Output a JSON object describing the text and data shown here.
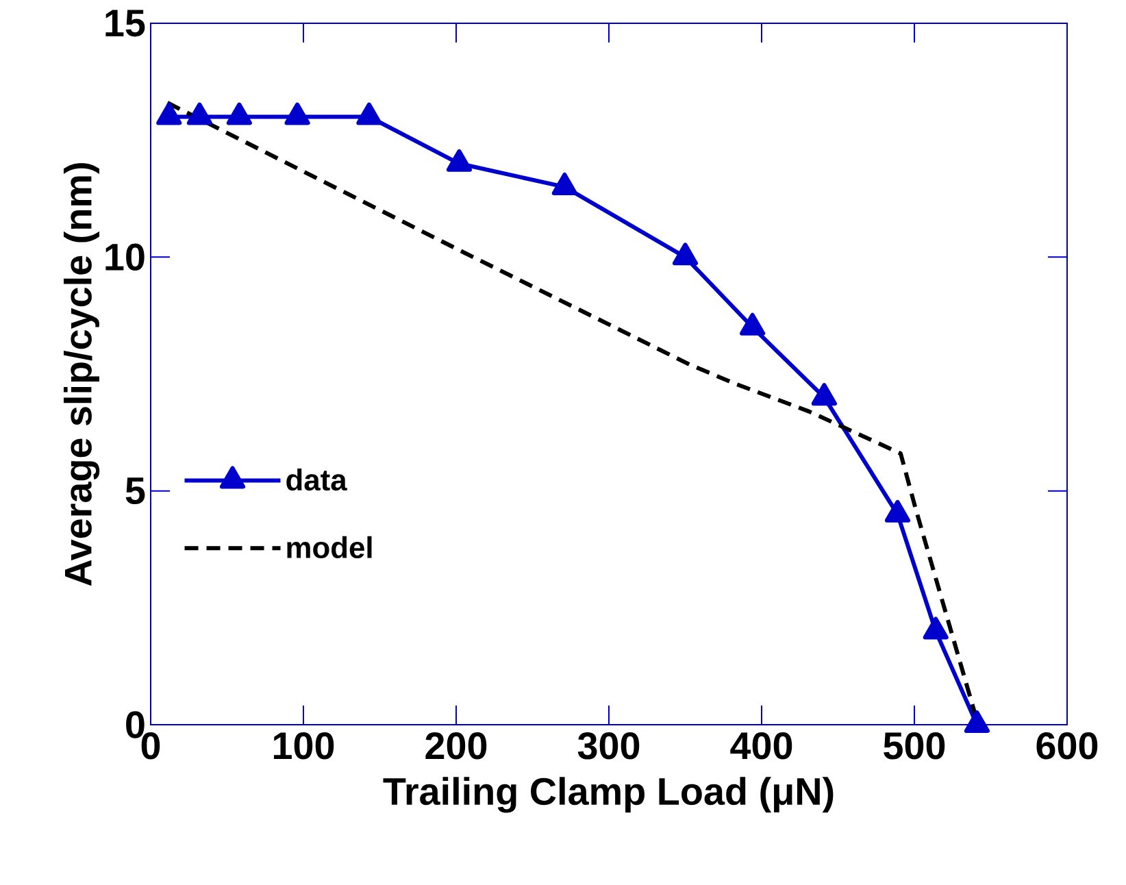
{
  "chart_data": {
    "type": "line",
    "xlabel": "Trailing Clamp Load  (μN)",
    "ylabel": "Average slip/cycle (nm)",
    "xlim": [
      0,
      600
    ],
    "ylim": [
      0,
      15
    ],
    "xticks": [
      0,
      100,
      200,
      300,
      400,
      500,
      600
    ],
    "yticks": [
      0,
      5,
      10,
      15
    ],
    "legend": "left",
    "grid": false,
    "series": [
      {
        "name": "data",
        "color": "#0000cc",
        "marker": "triangle",
        "line_style": "solid",
        "x": [
          12,
          32,
          58,
          96,
          143,
          202,
          271,
          350,
          394,
          441,
          489,
          514,
          541
        ],
        "values": [
          13.0,
          13.0,
          13.0,
          13.0,
          13.0,
          12.0,
          11.5,
          10.0,
          8.5,
          7.0,
          4.5,
          2.0,
          0
        ]
      },
      {
        "name": "model",
        "color": "#000000",
        "marker": "none",
        "line_style": "dashed",
        "x": [
          11,
          114,
          205,
          353,
          382,
          431,
          491,
          501,
          540
        ],
        "values": [
          13.3,
          11.6,
          10.1,
          7.7,
          7.3,
          6.7,
          5.8,
          4.6,
          0.2
        ]
      }
    ]
  }
}
